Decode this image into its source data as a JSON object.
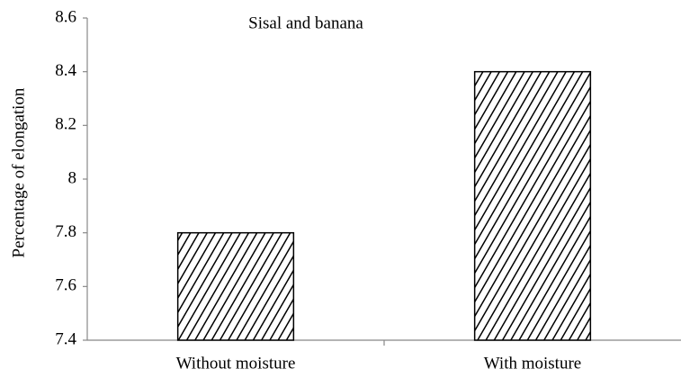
{
  "chart_data": {
    "type": "bar",
    "title": "Sisal and banana",
    "y_label": "Percentage of elongation",
    "categories": [
      "Without moisture",
      "With moisture"
    ],
    "values": [
      7.8,
      8.4
    ],
    "color": "#000000",
    "ylim": [
      7.4,
      8.6
    ],
    "yticks": [
      7.4,
      7.6,
      7.8,
      8,
      8.2,
      8.4,
      8.6
    ]
  }
}
